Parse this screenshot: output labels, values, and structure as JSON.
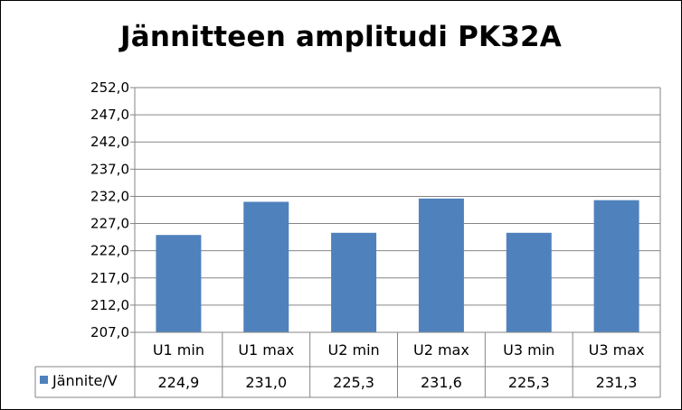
{
  "chart_data": {
    "type": "bar",
    "title": "Jännitteen amplitudi PK32A",
    "categories": [
      "U1 min",
      "U1 max",
      "U2 min",
      "U2 max",
      "U3 min",
      "U3 max"
    ],
    "series": [
      {
        "name": "Jännite/V",
        "values": [
          224.9,
          231.0,
          225.3,
          231.6,
          225.3,
          231.3
        ],
        "color": "#4f81bd"
      }
    ],
    "data_labels": [
      "224,9",
      "231,0",
      "225,3",
      "231,6",
      "225,3",
      "231,3"
    ],
    "yticks": [
      "207,0",
      "212,0",
      "217,0",
      "222,0",
      "227,0",
      "232,0",
      "237,0",
      "242,0",
      "247,0",
      "252,0"
    ],
    "ylim": [
      207,
      252
    ],
    "grid": true,
    "legend": "data-table"
  }
}
